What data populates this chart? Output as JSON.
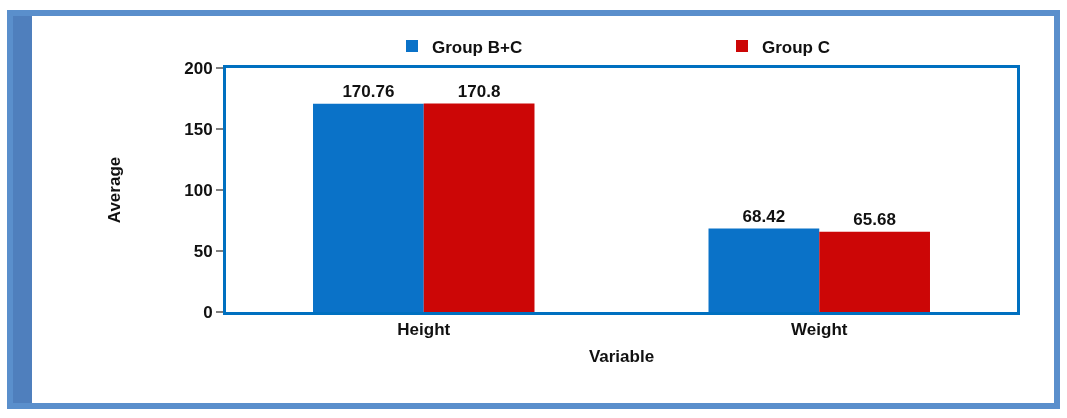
{
  "chart_data": {
    "type": "bar",
    "xlabel": "Variable",
    "ylabel": "Average",
    "categories": [
      "Height",
      "Weight"
    ],
    "series": [
      {
        "name": "Group B+C",
        "color": "#0a72c8",
        "values": [
          170.76,
          68.42
        ]
      },
      {
        "name": "Group C",
        "color": "#cc0606",
        "values": [
          170.8,
          65.68
        ]
      }
    ],
    "ylim": [
      0,
      200
    ],
    "yticks": [
      0,
      50,
      100,
      150,
      200
    ],
    "legend": "top",
    "data_labels": true
  }
}
